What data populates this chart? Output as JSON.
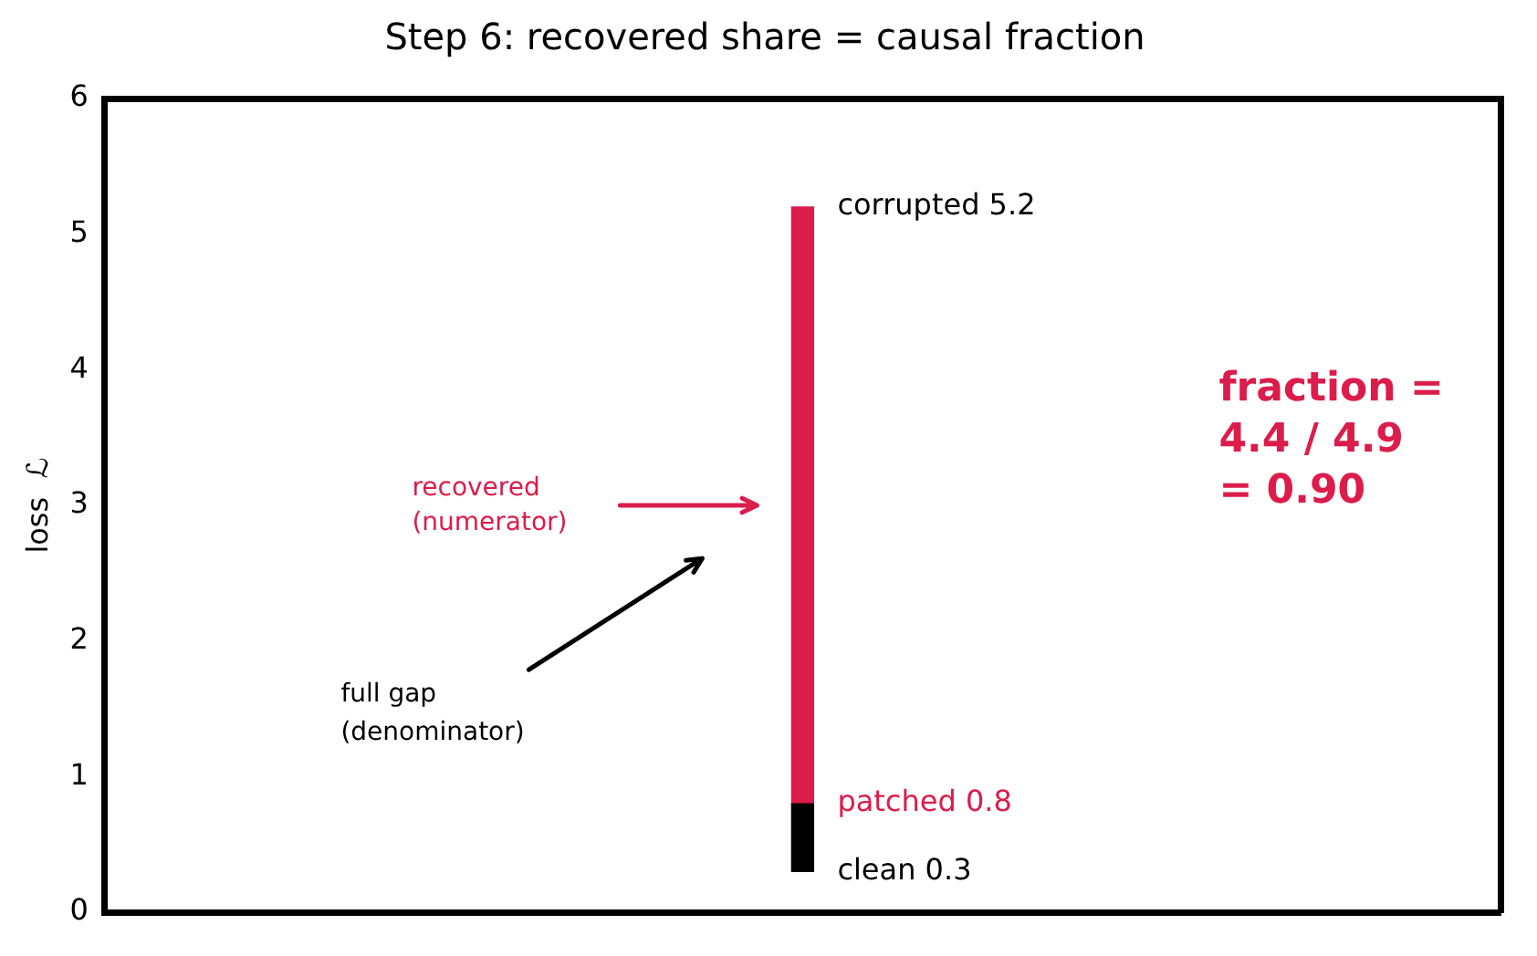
{
  "chart_data": {
    "type": "bar",
    "title": "Step 6: recovered share = causal fraction",
    "ylabel": "loss  ℒ",
    "categories": [
      null
    ],
    "series": [
      {
        "color": "#000000",
        "values": [
          0.5
        ],
        "base": [
          0.3
        ]
      },
      {
        "color": "#dc1c4b",
        "values": [
          4.4
        ],
        "base": [
          0.8
        ]
      }
    ],
    "ylim": [
      0,
      6
    ],
    "yticks": [
      0,
      1,
      2,
      3,
      4,
      5,
      6
    ],
    "grid": false,
    "legend": false,
    "tick_labels": "y",
    "annotations": [
      "corrupted 5.2",
      "patched 0.8",
      "clean 0.3",
      "recovered\n(numerator)",
      "full gap\n(denominator)",
      "fraction =\n4.4 / 4.9\n= 0.90"
    ]
  }
}
